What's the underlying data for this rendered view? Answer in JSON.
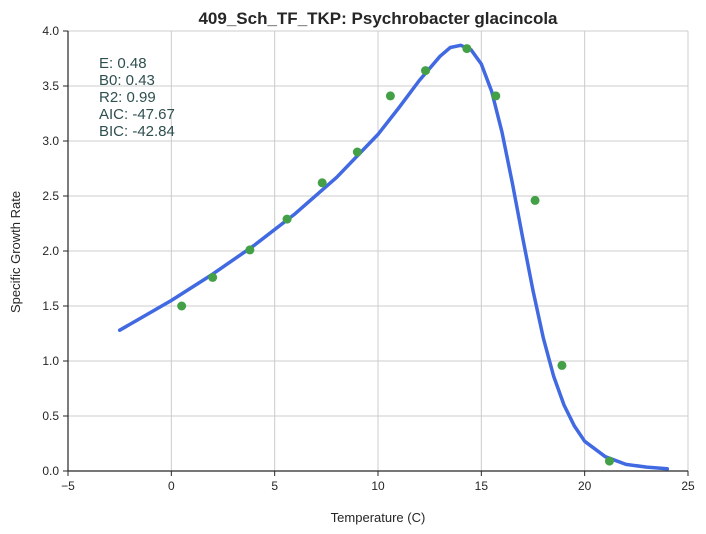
{
  "chart_data": {
    "type": "scatter",
    "title": "409_Sch_TF_TKP: Psychrobacter glacincola",
    "xlabel": "Temperature (C)",
    "ylabel": "Specific Growth Rate",
    "xlim": [
      -5,
      25
    ],
    "ylim": [
      0,
      4
    ],
    "xticks": [
      -5,
      0,
      5,
      10,
      15,
      20,
      25
    ],
    "yticks": [
      0.0,
      0.5,
      1.0,
      1.5,
      2.0,
      2.5,
      3.0,
      3.5,
      4.0
    ],
    "xtick_labels": [
      "−5",
      "0",
      "5",
      "10",
      "15",
      "20",
      "25"
    ],
    "ytick_labels": [
      "0.0",
      "0.5",
      "1.0",
      "1.5",
      "2.0",
      "2.5",
      "3.0",
      "3.5",
      "4.0"
    ],
    "grid": true,
    "series": [
      {
        "kind": "points",
        "color": "#43a047",
        "x": [
          0.5,
          2.0,
          3.8,
          5.6,
          7.3,
          9.0,
          10.6,
          12.3,
          14.3,
          15.7,
          17.6,
          18.9,
          21.2
        ],
        "y": [
          1.5,
          1.76,
          2.01,
          2.29,
          2.62,
          2.9,
          3.41,
          3.64,
          3.84,
          3.41,
          2.46,
          0.96,
          0.09
        ]
      },
      {
        "kind": "fit-line",
        "color": "#4169e1",
        "x": [
          -2.5,
          0,
          2,
          4,
          6,
          8,
          10,
          11,
          12,
          13,
          13.5,
          14,
          14.5,
          15,
          15.5,
          16,
          16.5,
          17,
          17.5,
          18,
          18.5,
          19,
          19.5,
          20,
          21,
          22,
          23,
          24
        ],
        "y": [
          1.28,
          1.55,
          1.79,
          2.05,
          2.34,
          2.67,
          3.06,
          3.3,
          3.55,
          3.77,
          3.85,
          3.87,
          3.83,
          3.7,
          3.45,
          3.08,
          2.62,
          2.12,
          1.64,
          1.21,
          0.86,
          0.6,
          0.41,
          0.27,
          0.13,
          0.06,
          0.035,
          0.02
        ]
      }
    ],
    "annotations": [
      "E:  0.48",
      "B0:  0.43",
      "R2:  0.99",
      "AIC: -47.67",
      "BIC: -42.84"
    ]
  }
}
